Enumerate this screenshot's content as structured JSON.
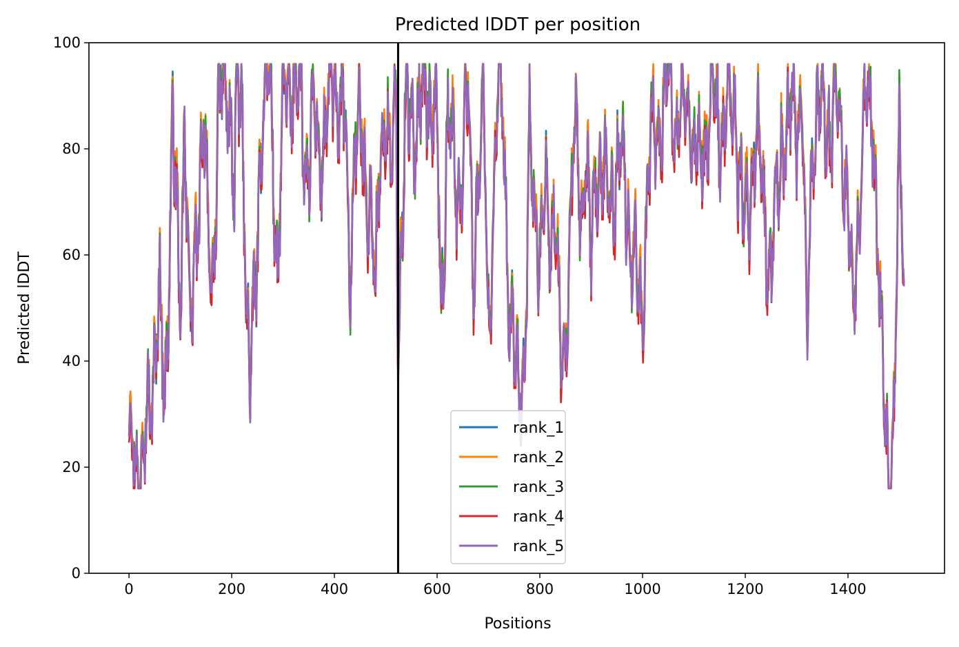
{
  "chart_data": {
    "type": "line",
    "title": "Predicted lDDT per position",
    "xlabel": "Positions",
    "ylabel": "Predicted lDDT",
    "xlim": [
      -78,
      1588
    ],
    "ylim": [
      0,
      100
    ],
    "xticks": [
      0,
      200,
      400,
      600,
      800,
      1000,
      1200,
      1400
    ],
    "yticks": [
      0,
      20,
      40,
      60,
      80,
      100
    ],
    "grid": false,
    "legend_position": "lower-center",
    "vline_x": 524,
    "vline_color": "#000000",
    "series": [
      {
        "name": "rank_1",
        "color": "#1f77b4",
        "offset": 0.3,
        "seed": 11
      },
      {
        "name": "rank_2",
        "color": "#ff7f0e",
        "offset": 1.4,
        "seed": 23
      },
      {
        "name": "rank_3",
        "color": "#2ca02c",
        "offset": 0.2,
        "seed": 37
      },
      {
        "name": "rank_4",
        "color": "#d62728",
        "offset": -1.2,
        "seed": 53
      },
      {
        "name": "rank_5",
        "color": "#9467bd",
        "offset": -0.2,
        "seed": 71
      }
    ],
    "profile_x": [
      0,
      10,
      20,
      30,
      45,
      60,
      70,
      85,
      100,
      108,
      120,
      130,
      145,
      160,
      175,
      190,
      200,
      205,
      210,
      220,
      235,
      245,
      260,
      275,
      290,
      300,
      320,
      335,
      345,
      360,
      370,
      380,
      400,
      420,
      430,
      440,
      460,
      470,
      480,
      490,
      500,
      510,
      520,
      524,
      540,
      560,
      580,
      600,
      608,
      620,
      640,
      660,
      670,
      690,
      700,
      720,
      730,
      740,
      750,
      770,
      780,
      800,
      810,
      820,
      830,
      840,
      850,
      860,
      870,
      880,
      890,
      900,
      910,
      930,
      960,
      1000,
      1010,
      1030,
      1050,
      1070,
      1090,
      1110,
      1130,
      1150,
      1180,
      1200,
      1220,
      1250,
      1270,
      1290,
      1310,
      1320,
      1330,
      1340,
      1360,
      1380,
      1400,
      1410,
      1430,
      1450,
      1470,
      1480,
      1490,
      1500,
      1510
    ],
    "profile_y": [
      24,
      26,
      20,
      23,
      38,
      50,
      32,
      85,
      48,
      88,
      42,
      62,
      86,
      50,
      88,
      92,
      85,
      70,
      88,
      88,
      34,
      50,
      90,
      92,
      56,
      88,
      94,
      88,
      75,
      85,
      80,
      82,
      93,
      85,
      55,
      85,
      76,
      72,
      50,
      82,
      88,
      72,
      93,
      45,
      88,
      85,
      92,
      84,
      48,
      87,
      70,
      90,
      60,
      88,
      48,
      92,
      85,
      48,
      40,
      35,
      80,
      60,
      72,
      65,
      70,
      38,
      42,
      70,
      82,
      68,
      80,
      55,
      78,
      70,
      78,
      46,
      78,
      85,
      92,
      85,
      88,
      75,
      88,
      85,
      88,
      62,
      85,
      55,
      82,
      85,
      88,
      42,
      80,
      88,
      85,
      88,
      72,
      45,
      88,
      85,
      28,
      22,
      28,
      82,
      55
    ]
  }
}
